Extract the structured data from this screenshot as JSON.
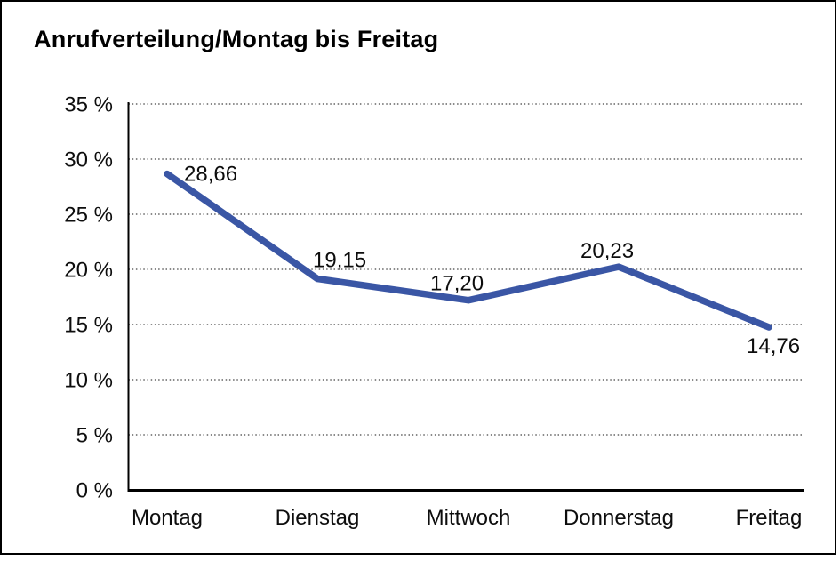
{
  "chart_data": {
    "type": "line",
    "title": "Anrufverteilung/Montag bis Freitag",
    "categories": [
      "Montag",
      "Dienstag",
      "Mittwoch",
      "Donnerstag",
      "Freitag"
    ],
    "values": [
      28.66,
      19.15,
      17.2,
      20.23,
      14.76
    ],
    "point_labels": [
      "28,66",
      "19,15",
      "17,20",
      "20,23",
      "14,76"
    ],
    "y_tick_labels": [
      "35 %",
      "30 %",
      "25 %",
      "20 %",
      "15 %",
      "10 %",
      "5 %",
      "0 %"
    ],
    "ylim": [
      0,
      35
    ],
    "ytick_step": 5,
    "xlabel": "",
    "ylabel": "",
    "legend": "none",
    "grid": "horizontal-dotted",
    "line_color": "#3A56A5",
    "axis_color": "#000000",
    "gridline_color": "#454545",
    "label_color": "#0d0d0d",
    "background_color": "#FFFFFF"
  }
}
